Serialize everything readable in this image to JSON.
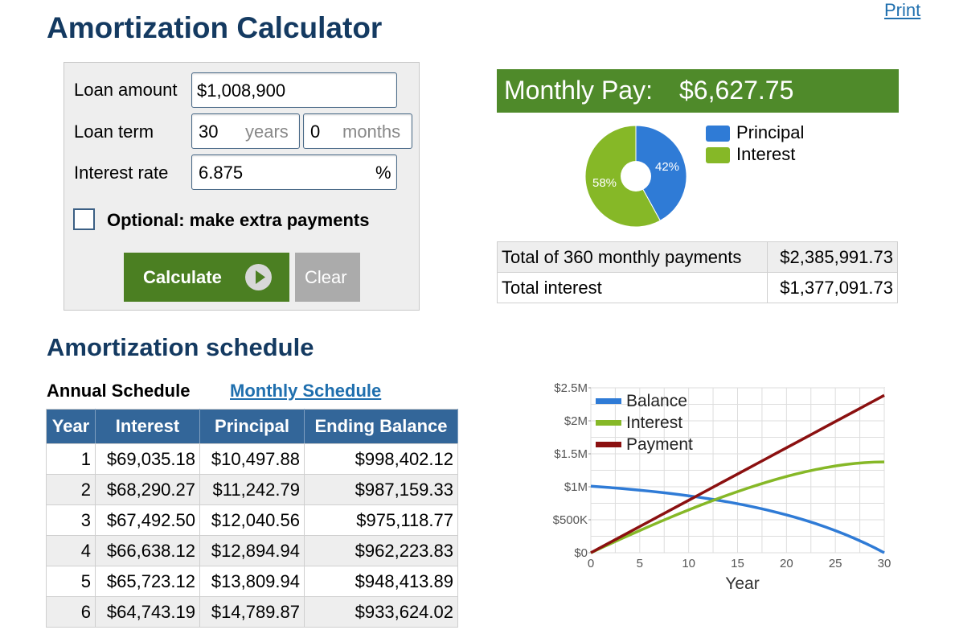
{
  "header": {
    "title": "Amortization Calculator",
    "print_link": "Print"
  },
  "form": {
    "loan_amount_label": "Loan amount",
    "loan_amount_value": "$1,008,900",
    "loan_term_label": "Loan term",
    "loan_term_years": "30",
    "years_unit": "years",
    "loan_term_months": "0",
    "months_unit": "months",
    "interest_rate_label": "Interest rate",
    "interest_rate_value": "6.875",
    "percent_unit": "%",
    "extra_payments_label": "Optional: make extra payments",
    "extra_payments_checked": false,
    "calculate_label": "Calculate",
    "clear_label": "Clear"
  },
  "results": {
    "monthly_pay_label": "Monthly Pay:",
    "monthly_pay_value": "$6,627.75",
    "pie": {
      "principal_pct": 42,
      "interest_pct": 58,
      "principal_label": "42%",
      "interest_label": "58%",
      "legend_principal": "Principal",
      "legend_interest": "Interest",
      "principal_color": "#2f7bd6",
      "interest_color": "#86b827"
    },
    "totals": [
      {
        "label": "Total of 360 monthly payments",
        "value": "$2,385,991.73"
      },
      {
        "label": "Total interest",
        "value": "$1,377,091.73"
      }
    ]
  },
  "schedule": {
    "title": "Amortization schedule",
    "tab_annual": "Annual Schedule",
    "tab_monthly": "Monthly Schedule",
    "columns": [
      "Year",
      "Interest",
      "Principal",
      "Ending Balance"
    ],
    "rows": [
      [
        "1",
        "$69,035.18",
        "$10,497.88",
        "$998,402.12"
      ],
      [
        "2",
        "$68,290.27",
        "$11,242.79",
        "$987,159.33"
      ],
      [
        "3",
        "$67,492.50",
        "$12,040.56",
        "$975,118.77"
      ],
      [
        "4",
        "$66,638.12",
        "$12,894.94",
        "$962,223.83"
      ],
      [
        "5",
        "$65,723.12",
        "$13,809.94",
        "$948,413.89"
      ],
      [
        "6",
        "$64,743.19",
        "$14,789.87",
        "$933,624.02"
      ]
    ]
  },
  "chart_data": {
    "type": "line",
    "xlabel": "Year",
    "ylabel": "",
    "xlim": [
      0,
      30
    ],
    "ylim": [
      0,
      2500000
    ],
    "x_ticks": [
      "0",
      "5",
      "10",
      "15",
      "20",
      "25",
      "30"
    ],
    "y_ticks": [
      "$0",
      "$500K",
      "$1M",
      "$1.5M",
      "$2M",
      "$2.5M"
    ],
    "grid": true,
    "legend_position": "top-left",
    "x": [
      0,
      1,
      2,
      3,
      4,
      5,
      6,
      7,
      8,
      9,
      10,
      11,
      12,
      13,
      14,
      15,
      16,
      17,
      18,
      19,
      20,
      21,
      22,
      23,
      24,
      25,
      26,
      27,
      28,
      29,
      30
    ],
    "series": [
      {
        "name": "Balance",
        "color": "#2f7bd6",
        "values": [
          1008900,
          998402,
          987159,
          975119,
          962224,
          948414,
          933624,
          917784,
          900821,
          882654,
          863198,
          842361,
          820046,
          796148,
          770553,
          743142,
          713787,
          682349,
          648680,
          612622,
          574006,
          532650,
          488360,
          440927,
          390130,
          335728,
          277466,
          215069,
          148243,
          76677,
          0
        ]
      },
      {
        "name": "Interest",
        "color": "#86b827",
        "values": [
          0,
          69035,
          137326,
          204818,
          271456,
          337179,
          401923,
          465616,
          528186,
          589552,
          649629,
          708326,
          765544,
          821179,
          875117,
          927239,
          977418,
          1025513,
          1071377,
          1114852,
          1155769,
          1193946,
          1229189,
          1261289,
          1290025,
          1315156,
          1336427,
          1353563,
          1366270,
          1374237,
          1377092
        ]
      },
      {
        "name": "Payment",
        "color": "#8b1010",
        "values": [
          0,
          79533,
          159066,
          238599,
          318132,
          397665,
          477198,
          556731,
          636264,
          715797,
          795330,
          874863,
          954396,
          1033929,
          1113462,
          1192995,
          1272528,
          1352061,
          1431594,
          1511127,
          1590660,
          1670193,
          1749726,
          1829259,
          1908792,
          1988325,
          2067858,
          2147391,
          2226924,
          2306457,
          2385992
        ]
      }
    ]
  }
}
